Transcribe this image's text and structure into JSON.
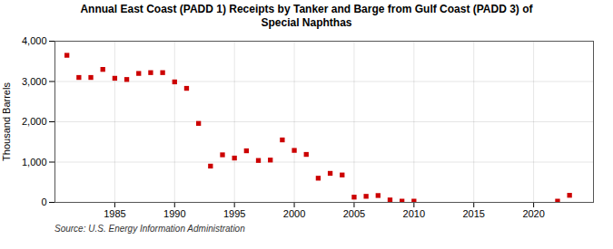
{
  "chart_data": {
    "type": "scatter",
    "title": "Annual East Coast (PADD 1) Receipts by Tanker and Barge from Gulf Coast (PADD 3) of\nSpecial Naphthas",
    "ylabel": "Thousand Barrels",
    "source": "Source: U.S. Energy Information Administration",
    "x": [
      1981,
      1982,
      1983,
      1984,
      1985,
      1986,
      1987,
      1988,
      1989,
      1990,
      1991,
      1992,
      1993,
      1994,
      1995,
      1996,
      1997,
      1998,
      1999,
      2000,
      2001,
      2002,
      2003,
      2004,
      2005,
      2006,
      2007,
      2008,
      2009,
      2010,
      2022,
      2023
    ],
    "values": [
      3650,
      3100,
      3100,
      3300,
      3080,
      3050,
      3200,
      3220,
      3220,
      2990,
      2830,
      1960,
      900,
      1180,
      1100,
      1280,
      1040,
      1050,
      1550,
      1290,
      1190,
      600,
      720,
      680,
      130,
      150,
      170,
      60,
      30,
      30,
      30,
      175
    ],
    "color": "#cc0000",
    "marker": "square",
    "xlim": [
      1980,
      2025
    ],
    "xticks": [
      1985,
      1990,
      1995,
      2000,
      2005,
      2010,
      2015,
      2020
    ],
    "ylim": [
      0,
      4000
    ],
    "yticks": [
      0,
      {
        "value": 1000,
        "label": "1,000"
      },
      {
        "value": 2000,
        "label": "2,000"
      },
      {
        "value": 3000,
        "label": "3,000"
      },
      {
        "value": 4000,
        "label": "4,000"
      }
    ],
    "grid": true
  }
}
